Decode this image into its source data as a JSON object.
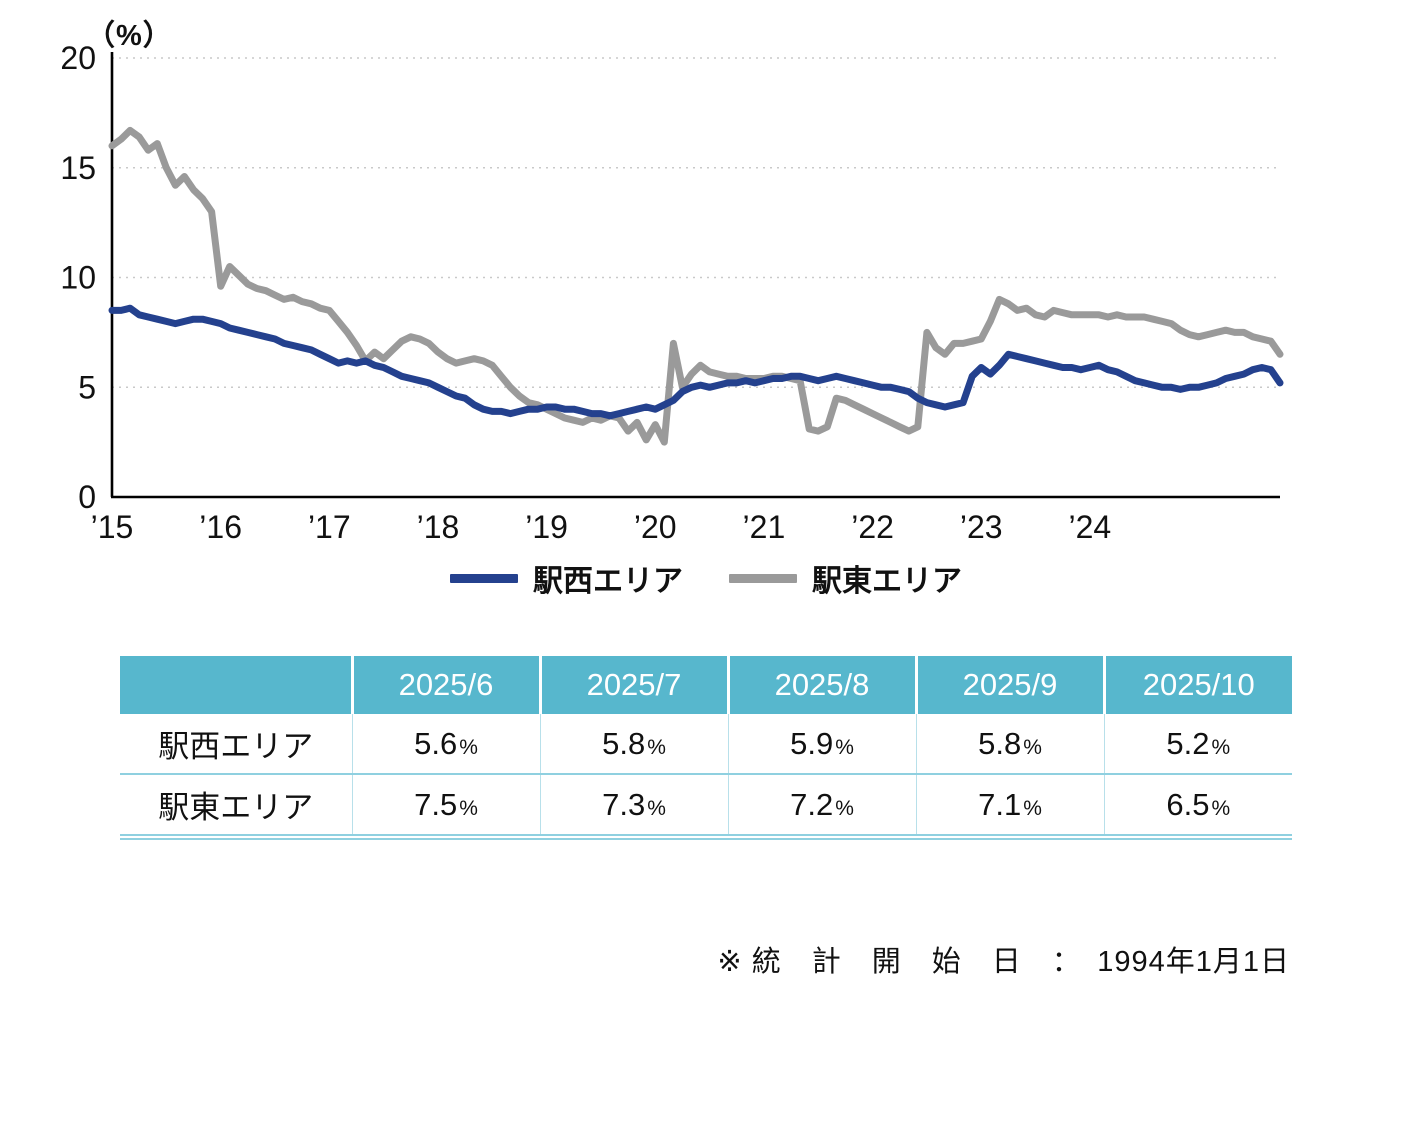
{
  "chart_data": {
    "type": "line",
    "title": "",
    "ylabel": "（%）",
    "xlabel": "",
    "ylim": [
      0,
      20
    ],
    "y_ticks": [
      0,
      5,
      10,
      15,
      20
    ],
    "x_tick_labels": [
      "’15",
      "’16",
      "’17",
      "’18",
      "’19",
      "’20",
      "’21",
      "’22",
      "’23",
      "’24"
    ],
    "months_per_tick": 12,
    "x_start": "2015-01",
    "x_interval": "month",
    "grid": "horizontal-dotted",
    "legend_position": "bottom",
    "series": [
      {
        "name": "駅西エリア",
        "color": "#24418e",
        "values": [
          8.5,
          8.5,
          8.6,
          8.3,
          8.2,
          8.1,
          8.0,
          7.9,
          8.0,
          8.1,
          8.1,
          8.0,
          7.9,
          7.7,
          7.6,
          7.5,
          7.4,
          7.3,
          7.2,
          7.0,
          6.9,
          6.8,
          6.7,
          6.5,
          6.3,
          6.1,
          6.2,
          6.1,
          6.2,
          6.0,
          5.9,
          5.7,
          5.5,
          5.4,
          5.3,
          5.2,
          5.0,
          4.8,
          4.6,
          4.5,
          4.2,
          4.0,
          3.9,
          3.9,
          3.8,
          3.9,
          4.0,
          4.0,
          4.1,
          4.1,
          4.0,
          4.0,
          3.9,
          3.8,
          3.8,
          3.7,
          3.8,
          3.9,
          4.0,
          4.1,
          4.0,
          4.2,
          4.4,
          4.8,
          5.0,
          5.1,
          5.0,
          5.1,
          5.2,
          5.2,
          5.3,
          5.2,
          5.3,
          5.4,
          5.4,
          5.5,
          5.5,
          5.4,
          5.3,
          5.4,
          5.5,
          5.4,
          5.3,
          5.2,
          5.1,
          5.0,
          5.0,
          4.9,
          4.8,
          4.5,
          4.3,
          4.2,
          4.1,
          4.2,
          4.3,
          5.5,
          5.9,
          5.6,
          6.0,
          6.5,
          6.4,
          6.3,
          6.2,
          6.1,
          6.0,
          5.9,
          5.9,
          5.8,
          5.9,
          6.0,
          5.8,
          5.7,
          5.5,
          5.3,
          5.2,
          5.1,
          5.0,
          5.0,
          4.9,
          5.0,
          5.0,
          5.1,
          5.2,
          5.4,
          5.5,
          5.6,
          5.8,
          5.9,
          5.8,
          5.2
        ]
      },
      {
        "name": "駅東エリア",
        "color": "#9a9a9a",
        "values": [
          16.0,
          16.3,
          16.7,
          16.4,
          15.8,
          16.1,
          15.0,
          14.2,
          14.6,
          14.0,
          13.6,
          13.0,
          9.6,
          10.5,
          10.1,
          9.7,
          9.5,
          9.4,
          9.2,
          9.0,
          9.1,
          8.9,
          8.8,
          8.6,
          8.5,
          8.0,
          7.5,
          6.9,
          6.2,
          6.6,
          6.3,
          6.7,
          7.1,
          7.3,
          7.2,
          7.0,
          6.6,
          6.3,
          6.1,
          6.2,
          6.3,
          6.2,
          6.0,
          5.5,
          5.0,
          4.6,
          4.3,
          4.2,
          4.0,
          3.8,
          3.6,
          3.5,
          3.4,
          3.6,
          3.5,
          3.7,
          3.6,
          3.0,
          3.4,
          2.6,
          3.3,
          2.5,
          7.0,
          5.0,
          5.6,
          6.0,
          5.7,
          5.6,
          5.5,
          5.5,
          5.4,
          5.4,
          5.4,
          5.5,
          5.5,
          5.4,
          5.3,
          3.1,
          3.0,
          3.2,
          4.5,
          4.4,
          4.2,
          4.0,
          3.8,
          3.6,
          3.4,
          3.2,
          3.0,
          3.2,
          7.5,
          6.8,
          6.5,
          7.0,
          7.0,
          7.1,
          7.2,
          8.0,
          9.0,
          8.8,
          8.5,
          8.6,
          8.3,
          8.2,
          8.5,
          8.4,
          8.3,
          8.3,
          8.3,
          8.3,
          8.2,
          8.3,
          8.2,
          8.2,
          8.2,
          8.1,
          8.0,
          7.9,
          7.6,
          7.4,
          7.3,
          7.4,
          7.5,
          7.6,
          7.5,
          7.5,
          7.3,
          7.2,
          7.1,
          6.5
        ]
      }
    ]
  },
  "table": {
    "columns": [
      "",
      "2025/6",
      "2025/7",
      "2025/8",
      "2025/9",
      "2025/10"
    ],
    "unit_suffix": "%",
    "rows": [
      {
        "label": "駅西エリア",
        "values": [
          "5.6",
          "5.8",
          "5.9",
          "5.8",
          "5.2"
        ]
      },
      {
        "label": "駅東エリア",
        "values": [
          "7.5",
          "7.3",
          "7.2",
          "7.1",
          "6.5"
        ]
      }
    ]
  },
  "footnote": {
    "text": "※ 統　計　開　始　日　：　1994年1月1日"
  },
  "colors": {
    "series_west": "#24418e",
    "series_east": "#9a9a9a",
    "table_header_bg": "#57b7cd",
    "table_rule": "#8fd0e0",
    "axis": "#000000",
    "gridline": "#c9c9c9"
  }
}
